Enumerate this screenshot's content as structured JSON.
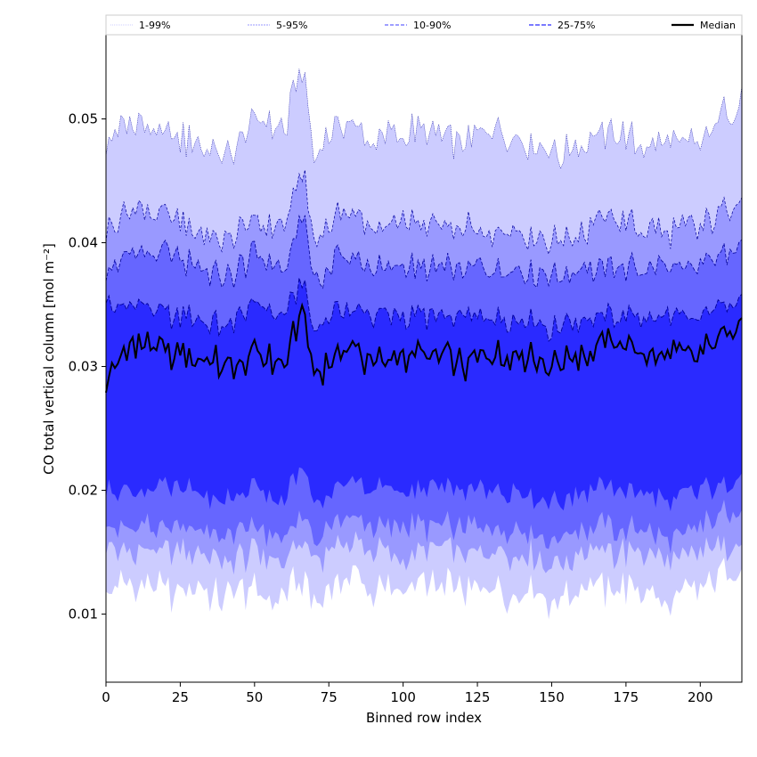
{
  "chart_data": {
    "type": "area",
    "title": "",
    "xlabel": "Binned row index",
    "ylabel": "CO total vertical column [mol m⁻²]",
    "xlim": [
      0,
      214
    ],
    "ylim": [
      0.0045,
      0.0568
    ],
    "xticks": [
      0,
      25,
      50,
      75,
      100,
      125,
      150,
      175,
      200
    ],
    "yticks": [
      0.01,
      0.02,
      0.03,
      0.04,
      0.05
    ],
    "ytick_labels": [
      "0.01",
      "0.02",
      "0.03",
      "0.04",
      "0.05"
    ],
    "grid": false,
    "legend_position": "top",
    "colors": {
      "band_1_99": "#ccccff",
      "band_5_95": "#9999ff",
      "band_10_90": "#6666ff",
      "band_25_75": "#2a2aff",
      "median": "#000000",
      "edge": "#00009a"
    },
    "legend": [
      {
        "label": "1-99%",
        "style": "1-99"
      },
      {
        "label": "5-95%",
        "style": "5-95"
      },
      {
        "label": "10-90%",
        "style": "10-90"
      },
      {
        "label": "25-75%",
        "style": "25-75"
      },
      {
        "label": "Median",
        "style": "median"
      }
    ],
    "x": [
      0,
      10,
      20,
      30,
      40,
      50,
      60,
      66,
      70,
      80,
      90,
      100,
      110,
      120,
      130,
      140,
      150,
      160,
      170,
      180,
      190,
      200,
      214
    ],
    "series": [
      {
        "name": "p99",
        "values": [
          0.048,
          0.05,
          0.049,
          0.048,
          0.047,
          0.05,
          0.049,
          0.054,
          0.047,
          0.05,
          0.048,
          0.049,
          0.049,
          0.048,
          0.049,
          0.048,
          0.047,
          0.048,
          0.049,
          0.048,
          0.048,
          0.048,
          0.052
        ]
      },
      {
        "name": "p95",
        "values": [
          0.041,
          0.043,
          0.042,
          0.041,
          0.04,
          0.042,
          0.041,
          0.046,
          0.04,
          0.043,
          0.041,
          0.042,
          0.041,
          0.041,
          0.041,
          0.041,
          0.04,
          0.041,
          0.042,
          0.041,
          0.041,
          0.041,
          0.044
        ]
      },
      {
        "name": "p90",
        "values": [
          0.038,
          0.039,
          0.039,
          0.038,
          0.037,
          0.039,
          0.038,
          0.042,
          0.037,
          0.039,
          0.038,
          0.038,
          0.038,
          0.038,
          0.038,
          0.038,
          0.037,
          0.038,
          0.038,
          0.038,
          0.038,
          0.038,
          0.04
        ]
      },
      {
        "name": "p75",
        "values": [
          0.035,
          0.035,
          0.034,
          0.034,
          0.033,
          0.035,
          0.034,
          0.037,
          0.033,
          0.035,
          0.034,
          0.034,
          0.034,
          0.034,
          0.034,
          0.034,
          0.033,
          0.034,
          0.034,
          0.034,
          0.034,
          0.034,
          0.036
        ]
      },
      {
        "name": "median",
        "values": [
          0.029,
          0.032,
          0.031,
          0.031,
          0.03,
          0.031,
          0.03,
          0.035,
          0.029,
          0.032,
          0.03,
          0.031,
          0.031,
          0.03,
          0.031,
          0.031,
          0.03,
          0.031,
          0.032,
          0.031,
          0.031,
          0.031,
          0.034
        ]
      },
      {
        "name": "p25",
        "values": [
          0.02,
          0.02,
          0.02,
          0.02,
          0.019,
          0.02,
          0.019,
          0.022,
          0.019,
          0.021,
          0.02,
          0.02,
          0.02,
          0.02,
          0.02,
          0.02,
          0.019,
          0.02,
          0.02,
          0.02,
          0.019,
          0.02,
          0.021
        ]
      },
      {
        "name": "p10",
        "values": [
          0.017,
          0.017,
          0.017,
          0.017,
          0.016,
          0.017,
          0.016,
          0.018,
          0.016,
          0.018,
          0.017,
          0.017,
          0.017,
          0.017,
          0.017,
          0.017,
          0.016,
          0.017,
          0.017,
          0.017,
          0.016,
          0.017,
          0.019
        ]
      },
      {
        "name": "p5",
        "values": [
          0.015,
          0.015,
          0.015,
          0.015,
          0.014,
          0.015,
          0.014,
          0.016,
          0.014,
          0.016,
          0.015,
          0.015,
          0.015,
          0.015,
          0.015,
          0.015,
          0.014,
          0.015,
          0.015,
          0.015,
          0.014,
          0.015,
          0.016
        ]
      },
      {
        "name": "p1",
        "values": [
          0.012,
          0.012,
          0.012,
          0.012,
          0.011,
          0.012,
          0.011,
          0.013,
          0.011,
          0.013,
          0.012,
          0.012,
          0.012,
          0.012,
          0.012,
          0.012,
          0.011,
          0.012,
          0.012,
          0.012,
          0.011,
          0.012,
          0.014
        ]
      }
    ]
  }
}
